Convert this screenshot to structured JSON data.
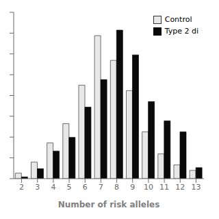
{
  "chart_data": {
    "type": "bar",
    "xlabel": "Number of risk alleles",
    "categories": [
      2,
      3,
      4,
      5,
      6,
      7,
      8,
      9,
      10,
      11,
      12,
      13
    ],
    "series": [
      {
        "name": "Control",
        "color": "#e8e8e8",
        "values": [
          1.0,
          3.0,
          6.5,
          10.0,
          17.0,
          26.0,
          21.5,
          16.0,
          8.5,
          4.5,
          2.5,
          1.5
        ]
      },
      {
        "name": "Type 2 di",
        "color": "#0a0a0a",
        "values": [
          0.3,
          1.8,
          5.0,
          7.5,
          13.0,
          18.0,
          27.0,
          22.5,
          14.0,
          10.5,
          8.5,
          2.0
        ]
      }
    ],
    "ylim": [
      0,
      30.24
    ],
    "yticks": [
      0,
      3.78,
      7.56,
      11.34,
      15.12,
      18.9,
      22.68,
      26.46,
      30.24
    ],
    "grid": false,
    "legend": "upper right",
    "tick_labels": "x"
  }
}
